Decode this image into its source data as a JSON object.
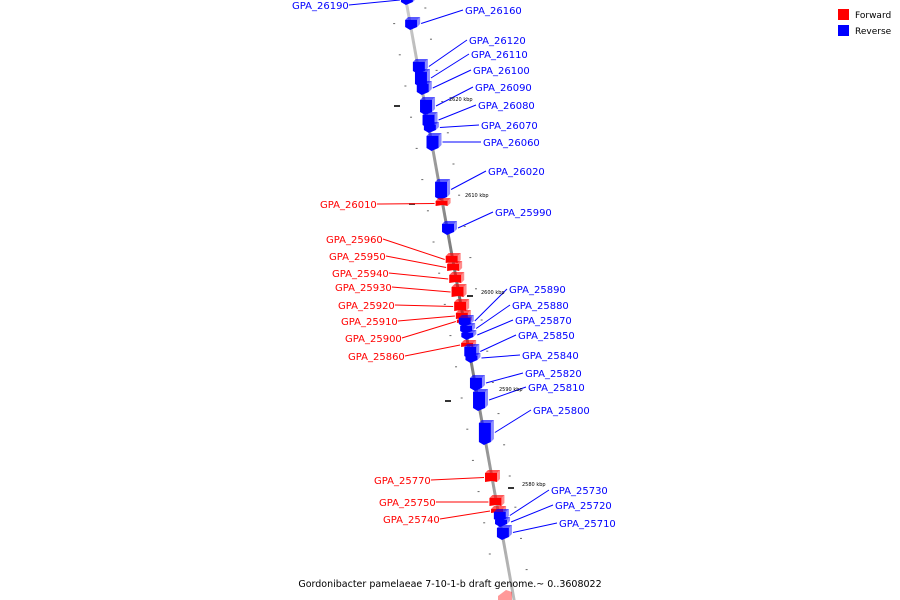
{
  "colors": {
    "forward": "#ff0000",
    "reverse": "#0000ff",
    "backbone": "#888888",
    "tick": "#000000"
  },
  "legend": [
    {
      "label": "Forward",
      "color": "#ff0000"
    },
    {
      "label": "Reverse",
      "color": "#0000ff"
    }
  ],
  "caption": "Gordonibacter pamelaeae 7-10-1-b draft genome.~ 0..3608022",
  "chart_data": {
    "type": "genome-map",
    "kbp_marks": [
      "2620 kbp",
      "2610 kbp",
      "2600 kbp",
      "2590 kbp",
      "2580 kbp"
    ],
    "genes": [
      {
        "id": "GPA_26190",
        "strand": "reverse"
      },
      {
        "id": "GPA_26160",
        "strand": "reverse"
      },
      {
        "id": "GPA_26120",
        "strand": "reverse"
      },
      {
        "id": "GPA_26110",
        "strand": "reverse"
      },
      {
        "id": "GPA_26100",
        "strand": "reverse"
      },
      {
        "id": "GPA_26090",
        "strand": "reverse"
      },
      {
        "id": "GPA_26080",
        "strand": "reverse"
      },
      {
        "id": "GPA_26070",
        "strand": "reverse"
      },
      {
        "id": "GPA_26060",
        "strand": "reverse"
      },
      {
        "id": "GPA_26020",
        "strand": "reverse"
      },
      {
        "id": "GPA_26010",
        "strand": "forward"
      },
      {
        "id": "GPA_25990",
        "strand": "reverse"
      },
      {
        "id": "GPA_25960",
        "strand": "forward"
      },
      {
        "id": "GPA_25950",
        "strand": "forward"
      },
      {
        "id": "GPA_25940",
        "strand": "forward"
      },
      {
        "id": "GPA_25930",
        "strand": "forward"
      },
      {
        "id": "GPA_25920",
        "strand": "forward"
      },
      {
        "id": "GPA_25910",
        "strand": "forward"
      },
      {
        "id": "GPA_25900",
        "strand": "forward"
      },
      {
        "id": "GPA_25860",
        "strand": "forward"
      },
      {
        "id": "GPA_25890",
        "strand": "reverse"
      },
      {
        "id": "GPA_25880",
        "strand": "reverse"
      },
      {
        "id": "GPA_25870",
        "strand": "reverse"
      },
      {
        "id": "GPA_25850",
        "strand": "reverse"
      },
      {
        "id": "GPA_25840",
        "strand": "reverse"
      },
      {
        "id": "GPA_25820",
        "strand": "reverse"
      },
      {
        "id": "GPA_25810",
        "strand": "reverse"
      },
      {
        "id": "GPA_25800",
        "strand": "reverse"
      },
      {
        "id": "GPA_25770",
        "strand": "forward"
      },
      {
        "id": "GPA_25750",
        "strand": "forward"
      },
      {
        "id": "GPA_25740",
        "strand": "forward"
      },
      {
        "id": "GPA_25730",
        "strand": "reverse"
      },
      {
        "id": "GPA_25720",
        "strand": "reverse"
      },
      {
        "id": "GPA_25710",
        "strand": "reverse"
      }
    ]
  }
}
